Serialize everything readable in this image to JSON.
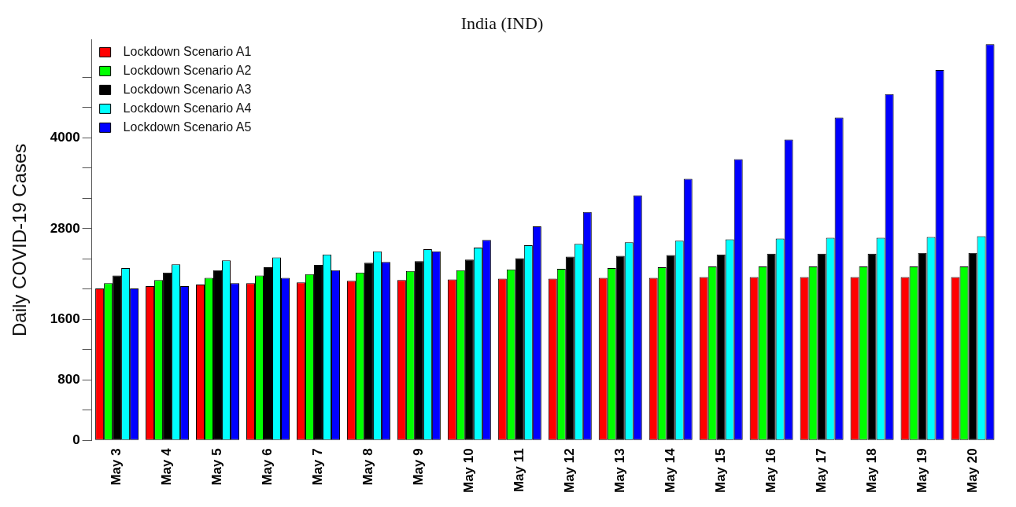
{
  "chart_data": {
    "type": "bar",
    "title": "India (IND)",
    "ylabel": "Daily COVID-19 Cases",
    "categories": [
      "May 3",
      "May 4",
      "May 5",
      "May 6",
      "May 7",
      "May 8",
      "May 9",
      "May 10",
      "May 11",
      "May 12",
      "May 13",
      "May 14",
      "May 15",
      "May 16",
      "May 17",
      "May 18",
      "May 19",
      "May 20"
    ],
    "series": [
      {
        "name": "Lockdown Scenario A1",
        "color": "#ff0000",
        "values": [
          2010,
          2040,
          2060,
          2080,
          2090,
          2110,
          2120,
          2130,
          2140,
          2140,
          2150,
          2150,
          2160,
          2160,
          2160,
          2160,
          2160,
          2160
        ]
      },
      {
        "name": "Lockdown Scenario A2",
        "color": "#00ff00",
        "values": [
          2080,
          2120,
          2150,
          2180,
          2200,
          2220,
          2240,
          2250,
          2260,
          2270,
          2280,
          2290,
          2300,
          2300,
          2300,
          2300,
          2300,
          2300
        ]
      },
      {
        "name": "Lockdown Scenario A3",
        "color": "#000000",
        "values": [
          2180,
          2220,
          2250,
          2290,
          2320,
          2350,
          2370,
          2390,
          2410,
          2430,
          2440,
          2450,
          2460,
          2470,
          2470,
          2470,
          2480,
          2480
        ]
      },
      {
        "name": "Lockdown Scenario A4",
        "color": "#00ffff",
        "values": [
          2280,
          2330,
          2380,
          2420,
          2460,
          2500,
          2530,
          2550,
          2580,
          2600,
          2620,
          2640,
          2660,
          2670,
          2680,
          2680,
          2690,
          2700
        ]
      },
      {
        "name": "Lockdown Scenario A5",
        "color": "#0000ff",
        "values": [
          2010,
          2040,
          2080,
          2150,
          2250,
          2360,
          2500,
          2650,
          2830,
          3020,
          3240,
          3460,
          3720,
          3980,
          4270,
          4580,
          4900,
          5240
        ]
      }
    ],
    "ylim": [
      0,
      5300
    ],
    "yticks": [
      0,
      {
        "value": 400,
        "label": null
      },
      800,
      {
        "value": 1200,
        "label": null
      },
      1600,
      {
        "value": 2000,
        "label": null
      },
      {
        "value": 2400,
        "label": null
      },
      2800,
      {
        "value": 3200,
        "label": null
      },
      {
        "value": 3600,
        "label": null
      },
      4000,
      {
        "value": 4400,
        "label": null
      },
      {
        "value": 4800,
        "label": null
      }
    ],
    "grid": false,
    "legend": "top left"
  }
}
